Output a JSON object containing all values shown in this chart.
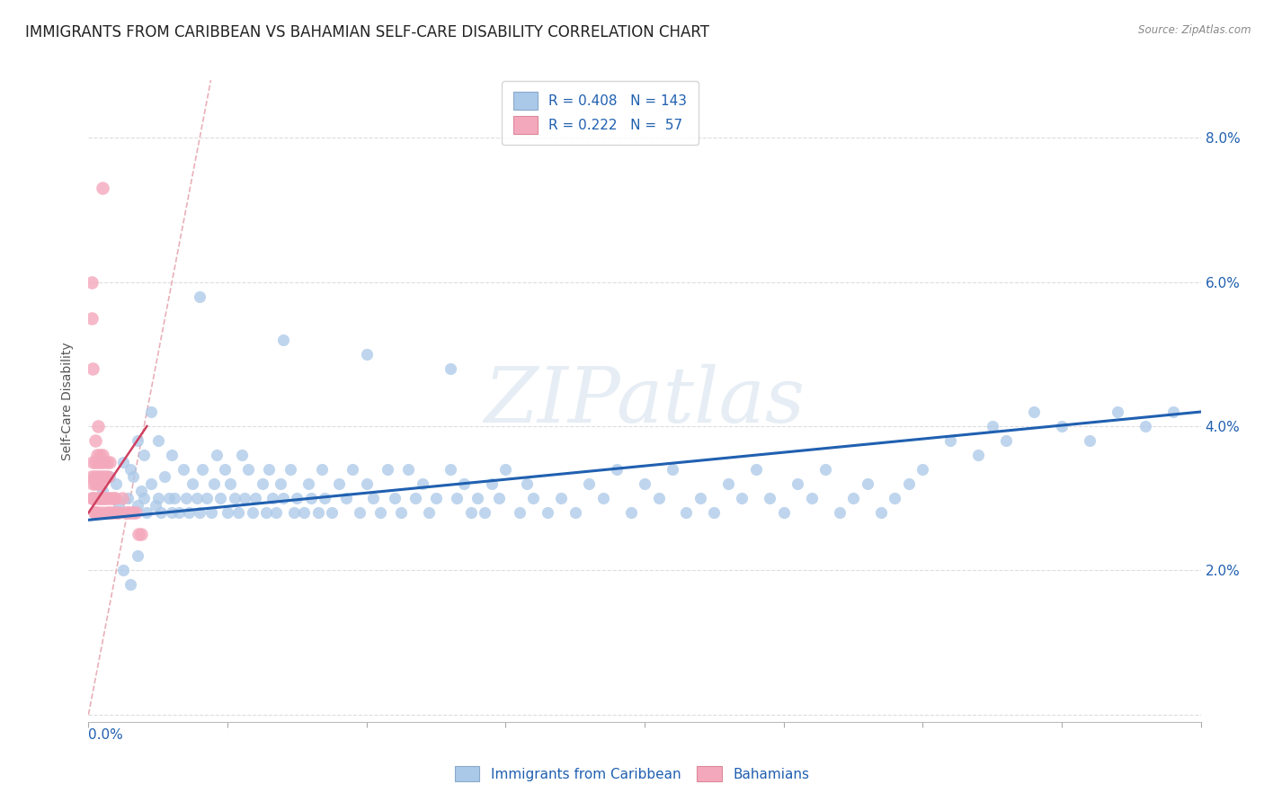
{
  "title": "IMMIGRANTS FROM CARIBBEAN VS BAHAMIAN SELF-CARE DISABILITY CORRELATION CHART",
  "source": "Source: ZipAtlas.com",
  "ylabel": "Self-Care Disability",
  "yticks": [
    0.0,
    0.02,
    0.04,
    0.06,
    0.08
  ],
  "ytick_labels": [
    "",
    "2.0%",
    "4.0%",
    "6.0%",
    "8.0%"
  ],
  "xlim": [
    0.0,
    0.8
  ],
  "ylim": [
    -0.001,
    0.088
  ],
  "r_blue": 0.408,
  "n_blue": 143,
  "r_pink": 0.222,
  "n_pink": 57,
  "blue_color": "#aac8e8",
  "pink_color": "#f4a8bc",
  "blue_line_color": "#2060b0",
  "pink_line_color": "#d04060",
  "ref_line_color": "#e8b0b8",
  "legend_text_color": "#2060b0",
  "title_fontsize": 12,
  "axis_label_fontsize": 9,
  "tick_fontsize": 10,
  "watermark": "ZIPatlas",
  "blue_scatter_x": [
    0.01,
    0.012,
    0.015,
    0.018,
    0.02,
    0.022,
    0.025,
    0.028,
    0.03,
    0.03,
    0.032,
    0.035,
    0.035,
    0.038,
    0.04,
    0.04,
    0.042,
    0.045,
    0.045,
    0.048,
    0.05,
    0.05,
    0.052,
    0.055,
    0.058,
    0.06,
    0.06,
    0.062,
    0.065,
    0.068,
    0.07,
    0.072,
    0.075,
    0.078,
    0.08,
    0.082,
    0.085,
    0.088,
    0.09,
    0.092,
    0.095,
    0.098,
    0.1,
    0.102,
    0.105,
    0.108,
    0.11,
    0.112,
    0.115,
    0.118,
    0.12,
    0.125,
    0.128,
    0.13,
    0.132,
    0.135,
    0.138,
    0.14,
    0.145,
    0.148,
    0.15,
    0.155,
    0.158,
    0.16,
    0.165,
    0.168,
    0.17,
    0.175,
    0.18,
    0.185,
    0.19,
    0.195,
    0.2,
    0.205,
    0.21,
    0.215,
    0.22,
    0.225,
    0.23,
    0.235,
    0.24,
    0.245,
    0.25,
    0.26,
    0.265,
    0.27,
    0.275,
    0.28,
    0.285,
    0.29,
    0.295,
    0.3,
    0.31,
    0.315,
    0.32,
    0.33,
    0.34,
    0.35,
    0.36,
    0.37,
    0.38,
    0.39,
    0.4,
    0.41,
    0.42,
    0.43,
    0.44,
    0.45,
    0.46,
    0.47,
    0.48,
    0.49,
    0.5,
    0.51,
    0.52,
    0.53,
    0.54,
    0.55,
    0.56,
    0.57,
    0.58,
    0.59,
    0.6,
    0.62,
    0.64,
    0.65,
    0.66,
    0.68,
    0.7,
    0.72,
    0.74,
    0.76,
    0.78,
    0.025,
    0.03,
    0.035,
    0.08,
    0.14,
    0.2,
    0.26
  ],
  "blue_scatter_y": [
    0.031,
    0.03,
    0.033,
    0.028,
    0.032,
    0.029,
    0.035,
    0.03,
    0.034,
    0.028,
    0.033,
    0.029,
    0.038,
    0.031,
    0.03,
    0.036,
    0.028,
    0.032,
    0.042,
    0.029,
    0.03,
    0.038,
    0.028,
    0.033,
    0.03,
    0.028,
    0.036,
    0.03,
    0.028,
    0.034,
    0.03,
    0.028,
    0.032,
    0.03,
    0.028,
    0.034,
    0.03,
    0.028,
    0.032,
    0.036,
    0.03,
    0.034,
    0.028,
    0.032,
    0.03,
    0.028,
    0.036,
    0.03,
    0.034,
    0.028,
    0.03,
    0.032,
    0.028,
    0.034,
    0.03,
    0.028,
    0.032,
    0.03,
    0.034,
    0.028,
    0.03,
    0.028,
    0.032,
    0.03,
    0.028,
    0.034,
    0.03,
    0.028,
    0.032,
    0.03,
    0.034,
    0.028,
    0.032,
    0.03,
    0.028,
    0.034,
    0.03,
    0.028,
    0.034,
    0.03,
    0.032,
    0.028,
    0.03,
    0.034,
    0.03,
    0.032,
    0.028,
    0.03,
    0.028,
    0.032,
    0.03,
    0.034,
    0.028,
    0.032,
    0.03,
    0.028,
    0.03,
    0.028,
    0.032,
    0.03,
    0.034,
    0.028,
    0.032,
    0.03,
    0.034,
    0.028,
    0.03,
    0.028,
    0.032,
    0.03,
    0.034,
    0.03,
    0.028,
    0.032,
    0.03,
    0.034,
    0.028,
    0.03,
    0.032,
    0.028,
    0.03,
    0.032,
    0.034,
    0.038,
    0.036,
    0.04,
    0.038,
    0.042,
    0.04,
    0.038,
    0.042,
    0.04,
    0.042,
    0.02,
    0.018,
    0.022,
    0.058,
    0.052,
    0.05,
    0.048
  ],
  "pink_scatter_x": [
    0.002,
    0.002,
    0.003,
    0.003,
    0.003,
    0.004,
    0.004,
    0.004,
    0.005,
    0.005,
    0.005,
    0.005,
    0.006,
    0.006,
    0.006,
    0.007,
    0.007,
    0.007,
    0.007,
    0.008,
    0.008,
    0.008,
    0.009,
    0.009,
    0.009,
    0.01,
    0.01,
    0.01,
    0.011,
    0.011,
    0.012,
    0.012,
    0.013,
    0.013,
    0.014,
    0.014,
    0.015,
    0.015,
    0.016,
    0.017,
    0.018,
    0.019,
    0.02,
    0.022,
    0.024,
    0.026,
    0.028,
    0.03,
    0.032,
    0.034,
    0.036,
    0.038,
    0.002,
    0.002,
    0.003,
    0.01
  ],
  "pink_scatter_y": [
    0.03,
    0.033,
    0.03,
    0.035,
    0.032,
    0.028,
    0.033,
    0.03,
    0.028,
    0.032,
    0.035,
    0.038,
    0.03,
    0.033,
    0.036,
    0.028,
    0.032,
    0.035,
    0.04,
    0.03,
    0.033,
    0.036,
    0.03,
    0.035,
    0.032,
    0.028,
    0.033,
    0.036,
    0.03,
    0.035,
    0.03,
    0.033,
    0.028,
    0.035,
    0.03,
    0.033,
    0.028,
    0.035,
    0.03,
    0.028,
    0.03,
    0.03,
    0.028,
    0.028,
    0.03,
    0.028,
    0.028,
    0.028,
    0.028,
    0.028,
    0.025,
    0.025,
    0.06,
    0.055,
    0.048,
    0.073
  ],
  "blue_trend_x": [
    0.0,
    0.8
  ],
  "blue_trend_y_start": 0.027,
  "blue_trend_y_end": 0.042,
  "pink_trend_x": [
    0.0,
    0.042
  ],
  "pink_trend_y_start": 0.028,
  "pink_trend_y_end": 0.04,
  "ref_line_x": [
    0.0,
    0.088
  ],
  "ref_line_y": [
    0.0,
    0.088
  ]
}
